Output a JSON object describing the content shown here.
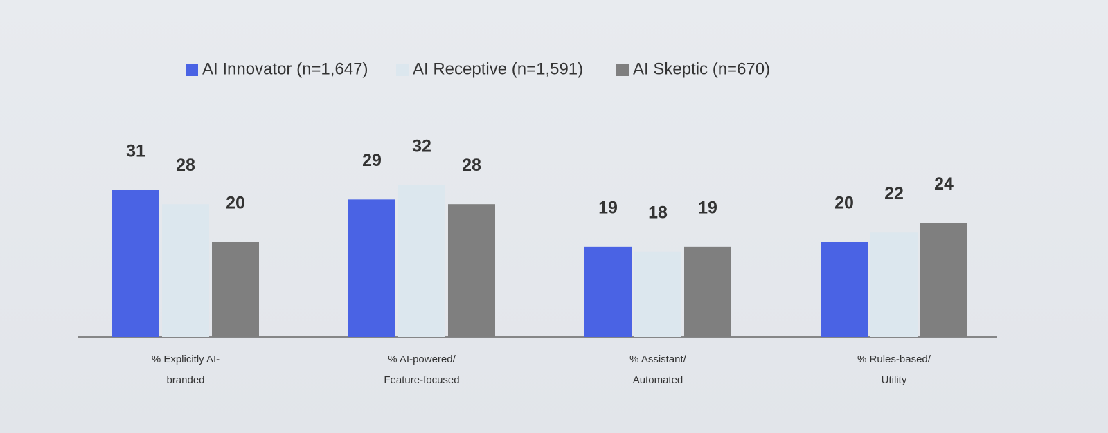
{
  "chart_data": {
    "type": "bar",
    "categories": [
      "% Explicitly AI-branded",
      "% AI-powered/ Feature-focused",
      "% Assistant/ Automated",
      "% Rules-based/ Utility"
    ],
    "series": [
      {
        "name": "AI Innovator (n=1,647)",
        "color": "#4a63e4",
        "values": [
          31,
          29,
          19,
          20
        ]
      },
      {
        "name": "AI Receptive (n=1,591)",
        "color": "#dce7ee",
        "values": [
          28,
          32,
          18,
          22
        ]
      },
      {
        "name": "AI Skeptic (n=670)",
        "color": "#7f7f7f",
        "values": [
          20,
          28,
          19,
          24
        ]
      }
    ]
  }
}
